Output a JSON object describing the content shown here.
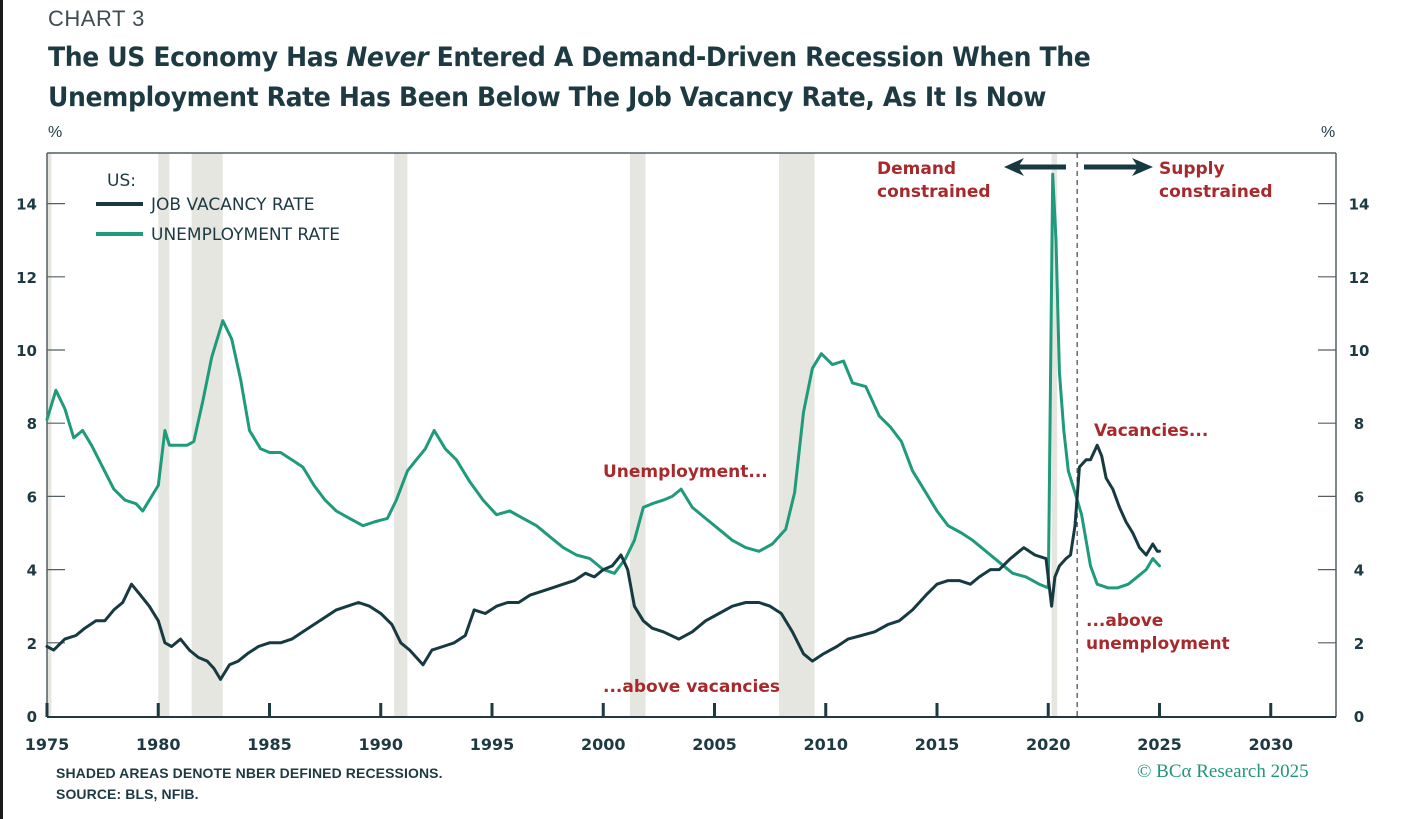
{
  "header": {
    "chart_label": "CHART 3",
    "title_part1": "The US Economy Has ",
    "title_emphasis": "Never",
    "title_part2": " Entered A Demand-Driven Recession When The Unemployment Rate Has Been Below The Job Vacancy Rate, As It Is Now",
    "left_unit": "%",
    "right_unit": "%"
  },
  "footer": {
    "note": "SHADED AREAS DENOTE NBER DEFINED RECESSIONS.",
    "source": "SOURCE: BLS, NFIB.",
    "copyright": "© BCα Research 2025"
  },
  "colors": {
    "vacancy": "#173a42",
    "unemployment": "#1f9a7a",
    "annotation": "#a8292c",
    "recession_shade": "#e6e6e1",
    "axis": "#555f62"
  },
  "chart_data": {
    "type": "line",
    "title": "The US Economy Has Never Entered A Demand-Driven Recession When The Unemployment Rate Has Been Below The Job Vacancy Rate, As It Is Now",
    "xlabel": "",
    "ylabel": "%",
    "xlim": [
      1975,
      2033
    ],
    "ylim": [
      0,
      15.5
    ],
    "x_ticks": [
      1975,
      1980,
      1985,
      1990,
      1995,
      2000,
      2005,
      2010,
      2015,
      2020,
      2025,
      2030
    ],
    "y_ticks": [
      0,
      2,
      4,
      6,
      8,
      10,
      12,
      14
    ],
    "grid": false,
    "legend": {
      "title": "US:",
      "placement": "top-left",
      "entries": [
        "JOB VACANCY RATE",
        "UNEMPLOYMENT RATE"
      ]
    },
    "recessions": [
      [
        1975.0,
        1975.2
      ],
      [
        1980.0,
        1980.5
      ],
      [
        1981.5,
        1982.9
      ],
      [
        1990.6,
        1991.2
      ],
      [
        2001.2,
        2001.9
      ],
      [
        2007.9,
        2009.5
      ],
      [
        2020.15,
        2020.4
      ]
    ],
    "divider_year": 2021.3,
    "series": [
      {
        "name": "JOB VACANCY RATE",
        "x": [
          1975.0,
          1975.3,
          1975.8,
          1976.3,
          1976.7,
          1977.2,
          1977.6,
          1978.0,
          1978.4,
          1978.8,
          1979.2,
          1979.6,
          1980.0,
          1980.3,
          1980.6,
          1981.0,
          1981.4,
          1981.8,
          1982.2,
          1982.5,
          1982.8,
          1983.2,
          1983.6,
          1984.0,
          1984.5,
          1985.0,
          1985.5,
          1986.0,
          1986.5,
          1987.0,
          1987.5,
          1988.0,
          1988.5,
          1989.0,
          1989.5,
          1990.0,
          1990.5,
          1990.9,
          1991.3,
          1991.9,
          1992.3,
          1992.8,
          1993.3,
          1993.8,
          1994.2,
          1994.7,
          1995.2,
          1995.7,
          1996.2,
          1996.7,
          1997.2,
          1997.7,
          1998.2,
          1998.7,
          1999.2,
          1999.6,
          2000.0,
          2000.4,
          2000.8,
          2001.1,
          2001.4,
          2001.8,
          2002.2,
          2002.7,
          2003.4,
          2004.0,
          2004.6,
          2005.2,
          2005.8,
          2006.4,
          2007.0,
          2007.5,
          2008.0,
          2008.5,
          2009.0,
          2009.4,
          2009.9,
          2010.5,
          2011.0,
          2011.6,
          2012.2,
          2012.8,
          2013.3,
          2013.9,
          2014.5,
          2015.0,
          2015.5,
          2016.0,
          2016.5,
          2016.9,
          2017.4,
          2017.8,
          2018.3,
          2018.9,
          2019.4,
          2019.9,
          2020.15,
          2020.3,
          2020.5,
          2020.8,
          2021.0,
          2021.2,
          2021.4,
          2021.7,
          2021.9,
          2022.2,
          2022.4,
          2022.6,
          2022.9,
          2023.2,
          2023.5,
          2023.8,
          2024.1,
          2024.4,
          2024.7,
          2024.9,
          2025.0
        ],
        "values": [
          1.9,
          1.8,
          2.1,
          2.2,
          2.4,
          2.6,
          2.6,
          2.9,
          3.1,
          3.6,
          3.3,
          3.0,
          2.6,
          2.0,
          1.9,
          2.1,
          1.8,
          1.6,
          1.5,
          1.3,
          1.0,
          1.4,
          1.5,
          1.7,
          1.9,
          2.0,
          2.0,
          2.1,
          2.3,
          2.5,
          2.7,
          2.9,
          3.0,
          3.1,
          3.0,
          2.8,
          2.5,
          2.0,
          1.8,
          1.4,
          1.8,
          1.9,
          2.0,
          2.2,
          2.9,
          2.8,
          3.0,
          3.1,
          3.1,
          3.3,
          3.4,
          3.5,
          3.6,
          3.7,
          3.9,
          3.8,
          4.0,
          4.1,
          4.4,
          4.0,
          3.0,
          2.6,
          2.4,
          2.3,
          2.1,
          2.3,
          2.6,
          2.8,
          3.0,
          3.1,
          3.1,
          3.0,
          2.8,
          2.3,
          1.7,
          1.5,
          1.7,
          1.9,
          2.1,
          2.2,
          2.3,
          2.5,
          2.6,
          2.9,
          3.3,
          3.6,
          3.7,
          3.7,
          3.6,
          3.8,
          4.0,
          4.0,
          4.3,
          4.6,
          4.4,
          4.3,
          3.0,
          3.8,
          4.1,
          4.3,
          4.4,
          5.2,
          6.8,
          7.0,
          7.0,
          7.4,
          7.1,
          6.5,
          6.2,
          5.7,
          5.3,
          5.0,
          4.6,
          4.4,
          4.7,
          4.5,
          4.5
        ]
      },
      {
        "name": "UNEMPLOYMENT RATE",
        "x": [
          1975.0,
          1975.4,
          1975.8,
          1976.2,
          1976.6,
          1977.0,
          1977.5,
          1978.0,
          1978.5,
          1979.0,
          1979.3,
          1979.7,
          1980.0,
          1980.3,
          1980.5,
          1980.9,
          1981.3,
          1981.6,
          1982.0,
          1982.4,
          1982.9,
          1983.3,
          1983.7,
          1984.1,
          1984.6,
          1985.0,
          1985.5,
          1986.0,
          1986.5,
          1987.0,
          1987.5,
          1988.0,
          1988.6,
          1989.2,
          1989.7,
          1990.3,
          1990.7,
          1991.2,
          1991.6,
          1992.0,
          1992.4,
          1992.9,
          1993.4,
          1994.0,
          1994.6,
          1995.2,
          1995.8,
          1996.4,
          1997.0,
          1997.6,
          1998.2,
          1998.8,
          1999.4,
          2000.0,
          2000.5,
          2001.0,
          2001.4,
          2001.8,
          2002.2,
          2002.7,
          2003.1,
          2003.5,
          2004.0,
          2004.6,
          2005.2,
          2005.8,
          2006.4,
          2007.0,
          2007.6,
          2008.2,
          2008.6,
          2009.0,
          2009.4,
          2009.8,
          2010.3,
          2010.8,
          2011.2,
          2011.8,
          2012.4,
          2012.9,
          2013.4,
          2013.9,
          2014.5,
          2015.0,
          2015.5,
          2016.1,
          2016.6,
          2017.2,
          2017.8,
          2018.4,
          2019.0,
          2019.6,
          2020.0,
          2020.2,
          2020.35,
          2020.5,
          2020.7,
          2020.9,
          2021.2,
          2021.5,
          2021.9,
          2022.2,
          2022.7,
          2023.1,
          2023.6,
          2024.0,
          2024.4,
          2024.7,
          2025.0
        ],
        "values": [
          8.1,
          8.9,
          8.4,
          7.6,
          7.8,
          7.4,
          6.8,
          6.2,
          5.9,
          5.8,
          5.6,
          6.0,
          6.3,
          7.8,
          7.4,
          7.4,
          7.4,
          7.5,
          8.6,
          9.8,
          10.8,
          10.3,
          9.2,
          7.8,
          7.3,
          7.2,
          7.2,
          7.0,
          6.8,
          6.3,
          5.9,
          5.6,
          5.4,
          5.2,
          5.3,
          5.4,
          5.9,
          6.7,
          7.0,
          7.3,
          7.8,
          7.3,
          7.0,
          6.4,
          5.9,
          5.5,
          5.6,
          5.4,
          5.2,
          4.9,
          4.6,
          4.4,
          4.3,
          4.0,
          3.9,
          4.3,
          4.8,
          5.7,
          5.8,
          5.9,
          6.0,
          6.2,
          5.7,
          5.4,
          5.1,
          4.8,
          4.6,
          4.5,
          4.7,
          5.1,
          6.1,
          8.3,
          9.5,
          9.9,
          9.6,
          9.7,
          9.1,
          9.0,
          8.2,
          7.9,
          7.5,
          6.7,
          6.1,
          5.6,
          5.2,
          5.0,
          4.8,
          4.5,
          4.2,
          3.9,
          3.8,
          3.6,
          3.5,
          14.8,
          13.0,
          9.4,
          7.8,
          6.7,
          6.1,
          5.5,
          4.1,
          3.6,
          3.5,
          3.5,
          3.6,
          3.8,
          4.0,
          4.3,
          4.1
        ]
      }
    ],
    "annotations": [
      {
        "text": "Demand",
        "line": 1,
        "group": "demand"
      },
      {
        "text": "constrained",
        "line": 2,
        "group": "demand"
      },
      {
        "text": "Supply",
        "line": 1,
        "group": "supply"
      },
      {
        "text": "constrained",
        "line": 2,
        "group": "supply"
      },
      {
        "text": "Unemployment...",
        "group": "unemp-lead"
      },
      {
        "text": "...above vacancies",
        "group": "unemp-tail"
      },
      {
        "text": "Vacancies...",
        "group": "vac-lead"
      },
      {
        "text": "...above",
        "line": 1,
        "group": "vac-tail"
      },
      {
        "text": "unemployment",
        "line": 2,
        "group": "vac-tail"
      }
    ]
  }
}
